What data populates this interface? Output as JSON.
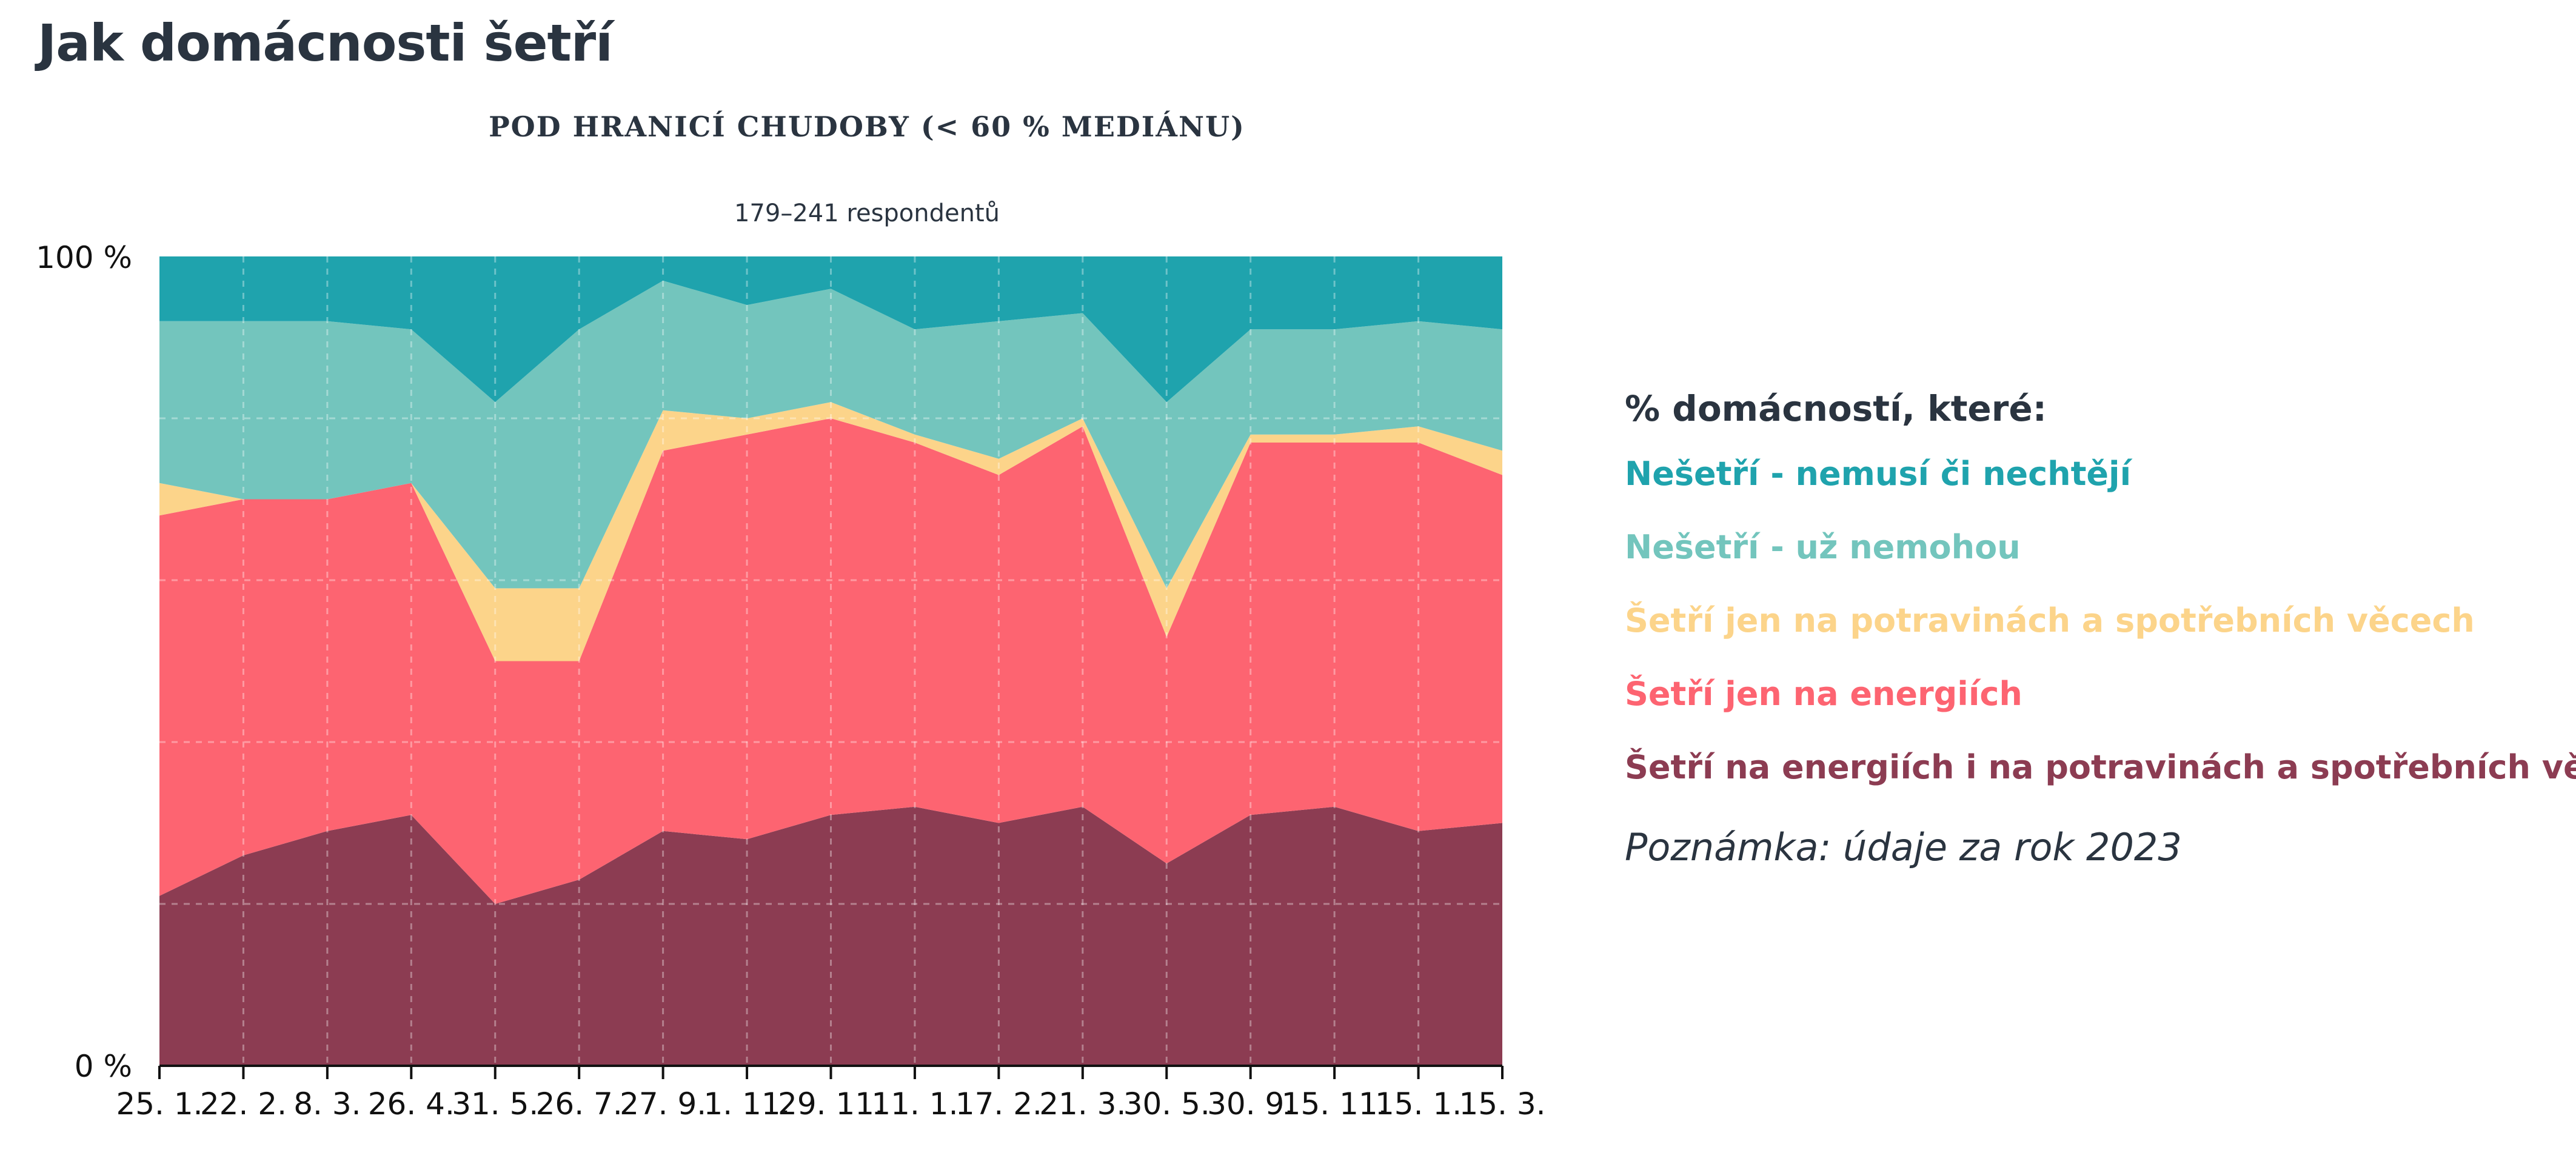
{
  "title": "Jak domácnosti šetří",
  "subtitle": "POD HRANICÍ CHUDOBY (< 60 % MEDIÁNU)",
  "respondents": "179–241 respondentů",
  "legend": {
    "title": "% domácností, které:",
    "items": [
      {
        "label": "Nešetří - nemusí či nechtějí",
        "color": "#1fa3ad"
      },
      {
        "label": "Nešetří - už nemohou",
        "color": "#73c5bd"
      },
      {
        "label": "Šetří jen na potravinách a spotřebních věcech",
        "color": "#fcd48a"
      },
      {
        "label": "Šetří jen na energiích",
        "color": "#fd6471"
      },
      {
        "label": "Šetří na energiích i na potravinách a spotřebních věcech",
        "color": "#8c3c52"
      }
    ]
  },
  "note": "Poznámka: údaje za rok 2023",
  "chart_data": {
    "type": "area",
    "stacked": true,
    "ylim": [
      0,
      100
    ],
    "ytick_labels": [
      "0 %",
      "100 %"
    ],
    "x": [
      "25. 1.",
      "22. 2.",
      "8. 3.",
      "26. 4.",
      "31. 5.",
      "26. 7.",
      "27. 9.",
      "1. 11.",
      "29. 11.",
      "11. 1.",
      "17. 2.",
      "21. 3.",
      "30. 5.",
      "30. 9.",
      "15. 11.",
      "15. 1.",
      "15. 3."
    ],
    "series": [
      {
        "name": "Šetří na energiích i na potravinách a spotřebních věcech",
        "color": "#8c3c52",
        "values": [
          21,
          26,
          29,
          31,
          20,
          23,
          29,
          28,
          31,
          32,
          30,
          32,
          25,
          31,
          32,
          29,
          30
        ]
      },
      {
        "name": "Šetří jen na energiích",
        "color": "#fd6471",
        "values": [
          47,
          44,
          41,
          41,
          30,
          27,
          47,
          50,
          49,
          45,
          43,
          47,
          28,
          46,
          45,
          48,
          43
        ]
      },
      {
        "name": "Šetří jen na potravinách a spotřebních věcech",
        "color": "#fcd48a",
        "values": [
          4,
          0,
          0,
          0,
          9,
          9,
          5,
          2,
          2,
          1,
          2,
          1,
          6,
          1,
          1,
          2,
          3
        ]
      },
      {
        "name": "Nešetří - už nemohou",
        "color": "#73c5bd",
        "values": [
          20,
          22,
          22,
          19,
          23,
          32,
          16,
          14,
          14,
          13,
          17,
          13,
          23,
          13,
          13,
          13,
          15
        ]
      },
      {
        "name": "Nešetří - nemusí či nechtějí",
        "color": "#1fa3ad",
        "values": [
          8,
          8,
          8,
          9,
          18,
          9,
          3,
          6,
          4,
          9,
          8,
          7,
          18,
          9,
          9,
          8,
          9
        ]
      }
    ]
  }
}
